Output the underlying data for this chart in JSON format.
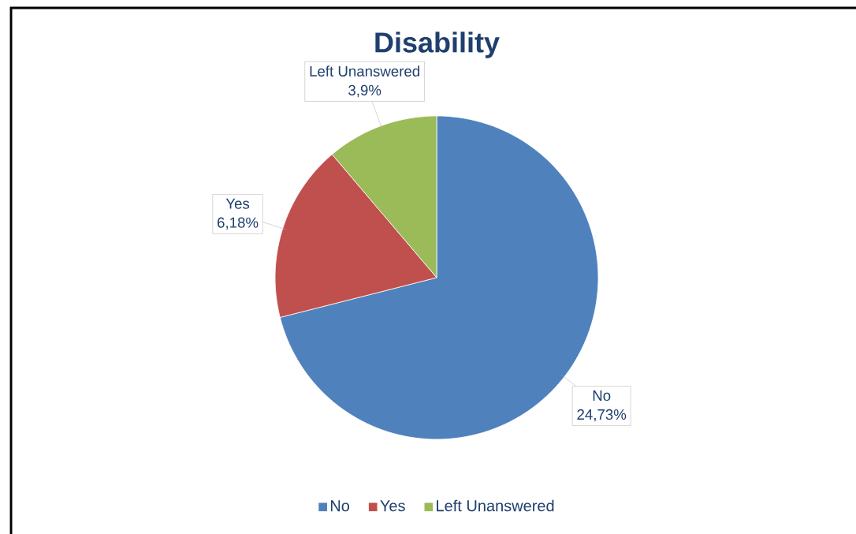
{
  "chart_data": {
    "type": "pie",
    "title": "Disability",
    "categories": [
      "No",
      "Yes",
      "Left Unanswered"
    ],
    "values": [
      24.73,
      6.18,
      3.9
    ],
    "value_labels": [
      "24,73%",
      "6,18%",
      "3,9%"
    ],
    "colors": [
      "#4f81bd",
      "#c0504d",
      "#9bbb59"
    ],
    "legend": "bottom"
  }
}
